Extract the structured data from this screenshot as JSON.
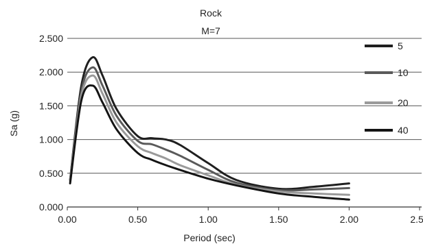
{
  "chart_data": {
    "type": "line",
    "title": "Rock",
    "subtitle": "M=7",
    "xlabel": "Period (sec)",
    "ylabel": "Sa (g)",
    "xlim": [
      0,
      2.5
    ],
    "ylim": [
      0,
      2.5
    ],
    "x_ticks": [
      "0.00",
      "0.50",
      "1.00",
      "1.50",
      "2.00",
      "2.50"
    ],
    "y_ticks": [
      "0.000",
      "0.500",
      "1.000",
      "1.500",
      "2.000",
      "2.500"
    ],
    "grid": "horizontal",
    "legend_position": "right",
    "series": [
      {
        "name": "5",
        "color": "#1f1f1f",
        "x": [
          0.02,
          0.1,
          0.18,
          0.25,
          0.35,
          0.5,
          0.6,
          0.7,
          0.8,
          1.0,
          1.2,
          1.5,
          1.75,
          2.0
        ],
        "y": [
          0.4,
          1.8,
          2.22,
          1.95,
          1.45,
          1.05,
          1.02,
          1.0,
          0.92,
          0.65,
          0.4,
          0.27,
          0.3,
          0.35
        ]
      },
      {
        "name": "10",
        "color": "#5a5a5a",
        "x": [
          0.02,
          0.1,
          0.18,
          0.25,
          0.35,
          0.5,
          0.6,
          0.7,
          0.8,
          1.0,
          1.2,
          1.5,
          1.75,
          2.0
        ],
        "y": [
          0.4,
          1.72,
          2.07,
          1.8,
          1.35,
          0.98,
          0.93,
          0.85,
          0.76,
          0.55,
          0.36,
          0.25,
          0.26,
          0.28
        ]
      },
      {
        "name": "20",
        "color": "#9a9a9a",
        "x": [
          0.02,
          0.1,
          0.18,
          0.25,
          0.35,
          0.5,
          0.6,
          0.7,
          0.8,
          1.0,
          1.2,
          1.5,
          1.75,
          2.0
        ],
        "y": [
          0.38,
          1.65,
          1.95,
          1.68,
          1.25,
          0.9,
          0.8,
          0.72,
          0.62,
          0.47,
          0.33,
          0.23,
          0.2,
          0.18
        ]
      },
      {
        "name": "40",
        "color": "#141414",
        "x": [
          0.02,
          0.1,
          0.18,
          0.25,
          0.35,
          0.5,
          0.6,
          0.7,
          0.8,
          1.0,
          1.2,
          1.5,
          1.75,
          2.0
        ],
        "y": [
          0.35,
          1.58,
          1.8,
          1.55,
          1.15,
          0.8,
          0.7,
          0.62,
          0.55,
          0.42,
          0.32,
          0.2,
          0.15,
          0.11
        ]
      }
    ]
  }
}
